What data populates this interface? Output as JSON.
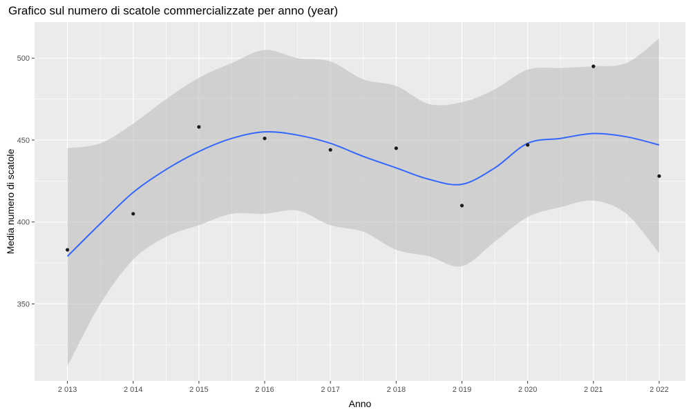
{
  "chart_data": {
    "type": "scatter",
    "title": "Grafico sul numero di scatole commercializzate per anno (year)",
    "xlabel": "Anno",
    "ylabel": "Media numero di scatole",
    "x": [
      2013,
      2014,
      2015,
      2016,
      2017,
      2018,
      2019,
      2020,
      2021,
      2022
    ],
    "x_tick_labels": [
      "2 013",
      "2 014",
      "2 015",
      "2 016",
      "2 017",
      "2 018",
      "2 019",
      "2 020",
      "2 021",
      "2 022"
    ],
    "y": [
      383,
      405,
      458,
      451,
      444,
      445,
      410,
      447,
      495,
      428
    ],
    "y_ticks": [
      350,
      400,
      450,
      500
    ],
    "y_tick_labels": [
      "350",
      "400",
      "450",
      "500"
    ],
    "xlim": [
      2012.5,
      2022.4
    ],
    "ylim": [
      303,
      522
    ],
    "grid": true,
    "smooth": {
      "x": [
        2013,
        2013.5,
        2014,
        2014.5,
        2015,
        2015.5,
        2016,
        2016.5,
        2017,
        2017.5,
        2018,
        2018.5,
        2019,
        2019.5,
        2020,
        2020.5,
        2021,
        2021.5,
        2022
      ],
      "y": [
        379,
        399,
        418,
        432,
        443,
        451,
        455,
        453,
        448,
        440,
        433,
        426,
        423,
        433,
        448,
        451,
        454,
        452,
        447
      ],
      "lower": [
        312,
        350,
        377,
        391,
        398,
        405,
        405,
        407,
        398,
        394,
        383,
        379,
        373,
        388,
        403,
        409,
        413,
        405,
        381
      ],
      "upper": [
        445,
        448,
        460,
        475,
        488,
        497,
        505,
        500,
        498,
        487,
        483,
        472,
        473,
        481,
        493,
        494,
        495,
        497,
        512
      ]
    },
    "colors": {
      "panel": "#ebebeb",
      "grid_major": "#ffffff",
      "line": "#3366ff",
      "ribbon": "#bebebe",
      "point": "#1a1a1a"
    }
  }
}
